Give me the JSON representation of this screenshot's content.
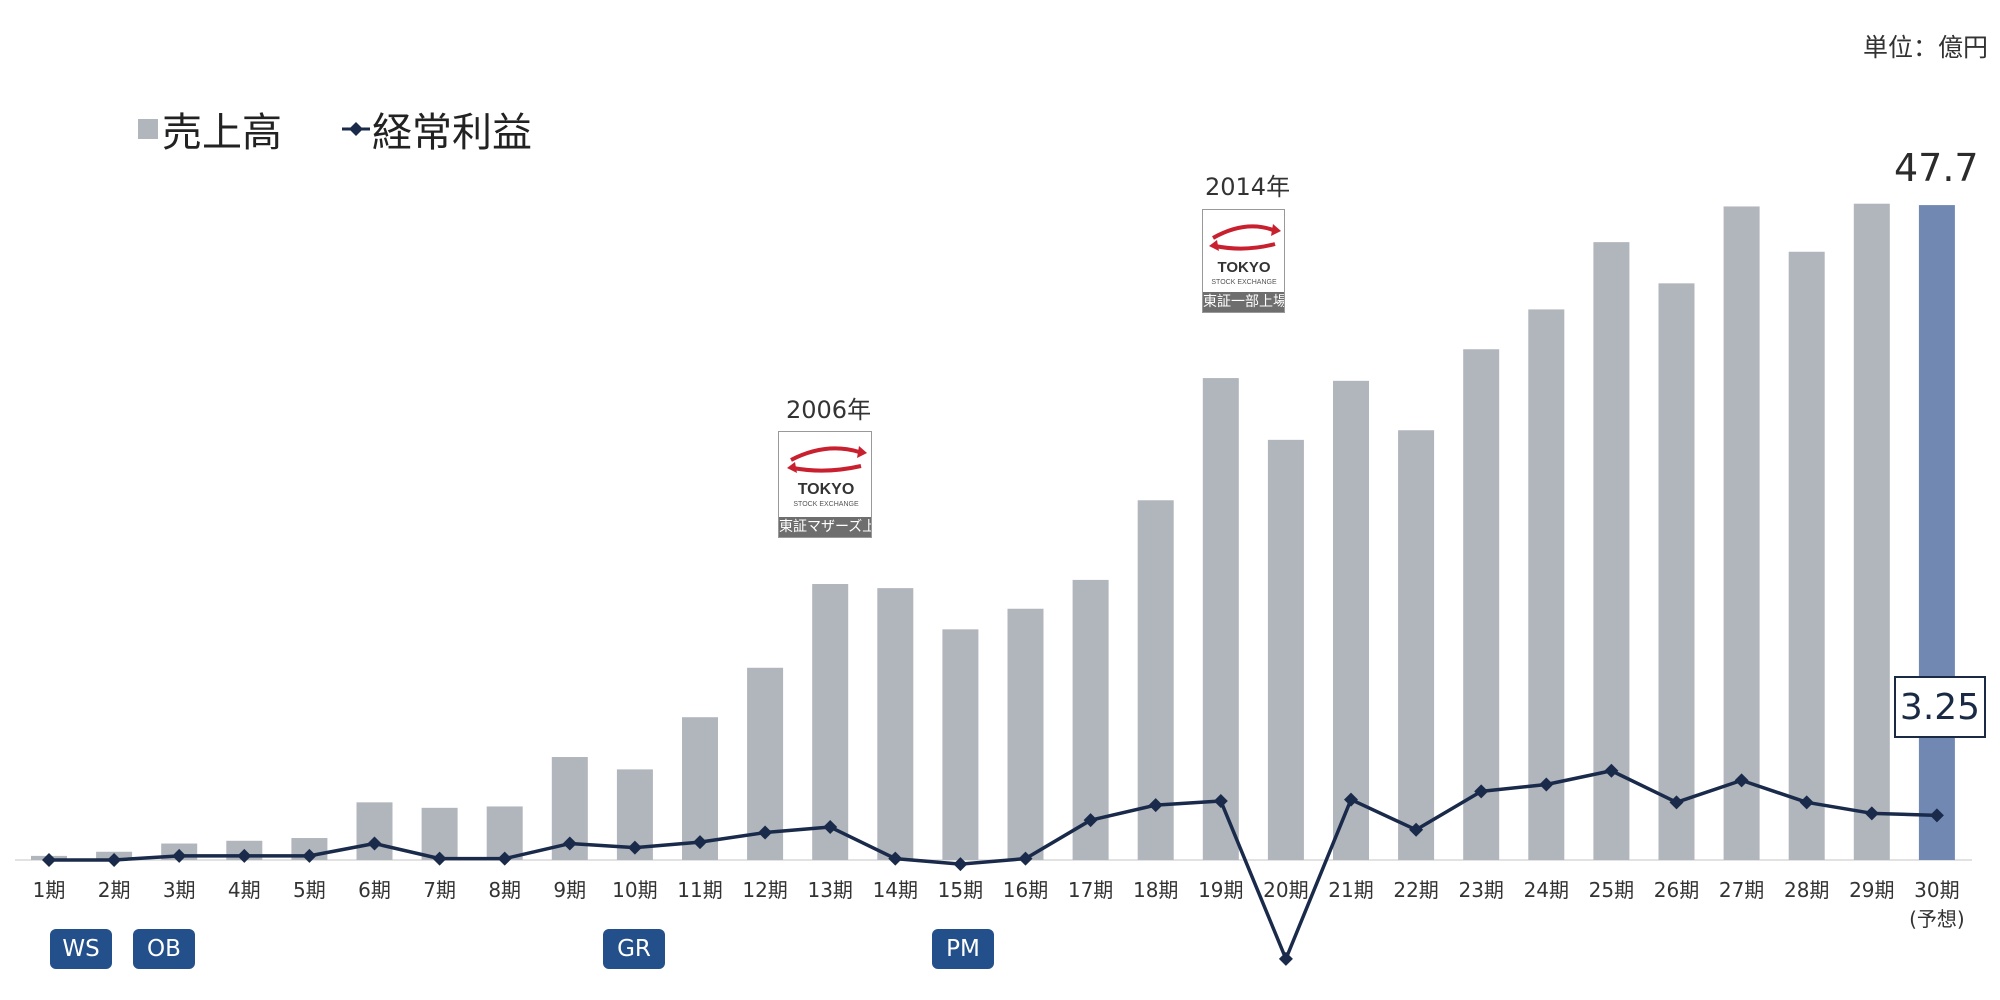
{
  "unit_label": "単位：億円",
  "legend": {
    "sales": "売上高",
    "profit": "経常利益"
  },
  "colors": {
    "bar": "#b1b5bc",
    "bar_highlight": "#7189b2",
    "line": "#1a2a4a",
    "badge": "#234f8a"
  },
  "annotations": {
    "year_2006": "2006年",
    "year_2014": "2014年",
    "tse_brand": "TOKYO",
    "tse_sub": "STOCK EXCHANGE",
    "tse_2006_caption": "東証マザーズ上場",
    "tse_2014_caption": "東証一部上場",
    "last_sales_label": "47.7",
    "last_profit_label": "3.25"
  },
  "badges": {
    "ws": "WS",
    "ob": "OB",
    "gr": "GR",
    "pm": "PM"
  },
  "chart_data": {
    "type": "bar",
    "title": "",
    "categories": [
      "1期",
      "2期",
      "3期",
      "4期",
      "5期",
      "6期",
      "7期",
      "8期",
      "9期",
      "10期",
      "11期",
      "12期",
      "13期",
      "14期",
      "15期",
      "16期",
      "17期",
      "18期",
      "19期",
      "20期",
      "21期",
      "22期",
      "23期",
      "24期",
      "25期",
      "26期",
      "27期",
      "28期",
      "29期",
      "30期"
    ],
    "last_category_note": "(予想)",
    "ylim": [
      -7.2,
      50.4
    ],
    "series": [
      {
        "name": "売上高",
        "type": "bar",
        "values": [
          0.3,
          0.6,
          1.2,
          1.4,
          1.6,
          4.2,
          3.8,
          3.9,
          7.5,
          6.6,
          10.4,
          14.0,
          20.1,
          19.8,
          16.8,
          18.3,
          20.4,
          26.2,
          35.1,
          30.6,
          34.9,
          31.3,
          37.2,
          40.1,
          45.0,
          42.0,
          47.6,
          44.3,
          47.8,
          47.7
        ]
      },
      {
        "name": "経常利益",
        "type": "line",
        "values": [
          0.0,
          0.0,
          0.3,
          0.3,
          0.3,
          1.2,
          0.1,
          0.1,
          1.2,
          0.9,
          1.3,
          2.0,
          2.4,
          0.1,
          -0.3,
          0.1,
          2.9,
          4.0,
          4.3,
          -7.2,
          4.4,
          2.2,
          5.0,
          5.5,
          6.5,
          4.2,
          5.8,
          4.2,
          3.4,
          3.25
        ]
      }
    ]
  }
}
